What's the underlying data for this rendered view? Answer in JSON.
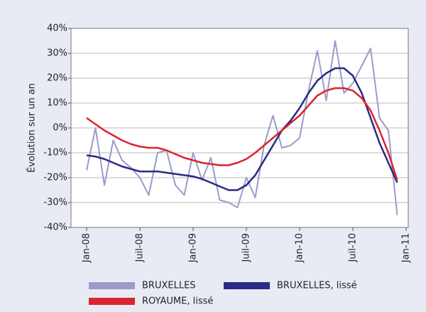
{
  "chart_data": {
    "type": "line",
    "y_label": "Évolution sur un an",
    "categories": [
      "Jan-08",
      null,
      null,
      null,
      null,
      null,
      "Juil-08",
      null,
      null,
      null,
      null,
      null,
      "Jan-09",
      null,
      null,
      null,
      null,
      null,
      "Juil-09",
      null,
      null,
      null,
      null,
      null,
      "Jan-10",
      null,
      null,
      null,
      null,
      null,
      "Juil-10",
      null,
      null,
      null,
      null,
      null,
      "Jan-11"
    ],
    "series": [
      {
        "name": "BRUXELLES",
        "color": "#9a9bcb",
        "width": 2,
        "values": [
          -17,
          0,
          -23,
          -5,
          -13,
          -16,
          -20,
          -27,
          -10,
          -9,
          -23,
          -27,
          -10,
          -21,
          -12,
          -29,
          -30,
          -32,
          -20,
          -28,
          -7,
          5,
          -8,
          -7,
          -4,
          15,
          31,
          11,
          35,
          14,
          18,
          25,
          32,
          4,
          -1,
          -35,
          null
        ]
      },
      {
        "name": "BRUXELLES, lissé",
        "color": "#2b2a85",
        "width": 2.5,
        "values": [
          -11,
          -11.5,
          -12.5,
          -14,
          -15.5,
          -16.5,
          -17.5,
          -17.5,
          -17.5,
          -18,
          -18.5,
          -19,
          -19.5,
          -20.5,
          -22,
          -23.5,
          -25,
          -25,
          -23,
          -19,
          -13,
          -7,
          -1,
          3,
          8,
          14,
          19,
          22,
          24,
          24,
          21,
          14,
          4,
          -6,
          -14,
          -22,
          null
        ]
      },
      {
        "name": "ROYAUME, lissé",
        "color": "#d9252f",
        "width": 2.5,
        "values": [
          4,
          1.5,
          -1,
          -3,
          -5,
          -6.5,
          -7.5,
          -8,
          -8,
          -9,
          -10.5,
          -12,
          -13,
          -14,
          -14.5,
          -15,
          -15,
          -14,
          -12.5,
          -10,
          -7,
          -4,
          -1,
          2,
          5,
          9,
          13,
          15,
          16,
          16,
          15,
          12,
          7,
          -1,
          -10,
          -21,
          null
        ]
      }
    ],
    "ylim": [
      -40,
      40
    ],
    "yticks": [
      {
        "value": -40,
        "label": "-40%"
      },
      {
        "value": -30,
        "label": "-30%"
      },
      {
        "value": -20,
        "label": "-20%"
      },
      {
        "value": -10,
        "label": "-10%"
      },
      {
        "value": 0,
        "label": "0%"
      },
      {
        "value": 10,
        "label": "10%"
      },
      {
        "value": 20,
        "label": "20%"
      },
      {
        "value": 30,
        "label": "30%"
      },
      {
        "value": 40,
        "label": "40%"
      }
    ],
    "grid": true
  }
}
